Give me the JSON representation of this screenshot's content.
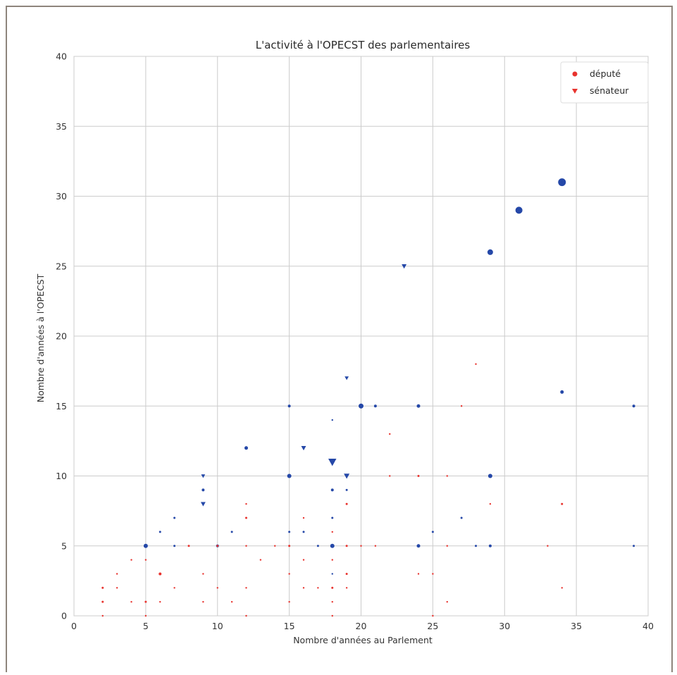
{
  "chart_data": {
    "type": "scatter",
    "title": "L'activité à l'OPECST des parlementaires",
    "xlabel": "Nombre d'années au Parlement",
    "ylabel": "Nombre d'années à l'OPECST",
    "xlim": [
      0,
      40
    ],
    "ylim": [
      0,
      40
    ],
    "xticks": [
      "0",
      "5",
      "10",
      "15",
      "20",
      "25",
      "30",
      "35",
      "40"
    ],
    "yticks": [
      "0",
      "5",
      "10",
      "15",
      "20",
      "25",
      "30",
      "35",
      "40"
    ],
    "grid": true,
    "legend_position": "top-right",
    "legend": [
      {
        "label": "député",
        "marker": "circle",
        "color": "#e8332e"
      },
      {
        "label": "sénateur",
        "marker": "triangle-down",
        "color": "#e8332e"
      }
    ],
    "colors": {
      "red": "#e8332e",
      "blue": "#2548a8",
      "grid": "#cccccc"
    },
    "series": [
      {
        "marker": "circle",
        "color": "#2548a8",
        "points": [
          [
            5,
            5,
            3
          ],
          [
            6,
            6,
            1.5
          ],
          [
            7,
            7,
            1.5
          ],
          [
            7,
            5,
            1.5
          ],
          [
            9,
            9,
            2
          ],
          [
            10,
            5,
            2
          ],
          [
            11,
            6,
            1.5
          ],
          [
            12,
            12,
            2.5
          ],
          [
            15,
            15,
            2
          ],
          [
            15,
            10,
            3
          ],
          [
            15,
            6,
            1.5
          ],
          [
            16,
            6,
            1.5
          ],
          [
            17,
            5,
            1.5
          ],
          [
            18,
            14,
            1.2
          ],
          [
            18,
            9,
            2
          ],
          [
            18,
            7,
            1.5
          ],
          [
            18,
            5,
            3
          ],
          [
            18,
            3,
            1.2
          ],
          [
            19,
            9,
            1.5
          ],
          [
            20,
            15,
            3.5
          ],
          [
            21,
            15,
            2
          ],
          [
            24,
            15,
            2.5
          ],
          [
            24,
            5,
            2.5
          ],
          [
            25,
            6,
            1.5
          ],
          [
            27,
            7,
            1.5
          ],
          [
            28,
            5,
            1.5
          ],
          [
            29,
            26,
            4
          ],
          [
            29,
            10,
            3
          ],
          [
            29,
            5,
            2
          ],
          [
            31,
            29,
            5
          ],
          [
            34,
            31,
            5.5
          ],
          [
            34,
            16,
            2.5
          ],
          [
            39,
            15,
            2
          ],
          [
            39,
            5,
            1.5
          ]
        ]
      },
      {
        "marker": "triangle-down",
        "color": "#2548a8",
        "points": [
          [
            9,
            10,
            2.5
          ],
          [
            9,
            8,
            3
          ],
          [
            16,
            12,
            3
          ],
          [
            18,
            11,
            5
          ],
          [
            19,
            17,
            2.5
          ],
          [
            19,
            10,
            3.5
          ],
          [
            23,
            25,
            3
          ]
        ]
      },
      {
        "marker": "circle",
        "color": "#e8332e",
        "points": [
          [
            2,
            2,
            1.5
          ],
          [
            2,
            1,
            1.5
          ],
          [
            2,
            0,
            1.2
          ],
          [
            3,
            3,
            1.2
          ],
          [
            3,
            2,
            1.2
          ],
          [
            4,
            4,
            1.2
          ],
          [
            4,
            1,
            1.2
          ],
          [
            5,
            4,
            1.2
          ],
          [
            5,
            1,
            1.5
          ],
          [
            5,
            0,
            1.2
          ],
          [
            6,
            3,
            2
          ],
          [
            6,
            1,
            1.2
          ],
          [
            7,
            2,
            1.2
          ],
          [
            8,
            5,
            1.5
          ],
          [
            9,
            3,
            1.2
          ],
          [
            9,
            1,
            1.2
          ],
          [
            10,
            5,
            1.5
          ],
          [
            10,
            2,
            1.2
          ],
          [
            11,
            1,
            1.2
          ],
          [
            12,
            8,
            1.2
          ],
          [
            12,
            7,
            1.5
          ],
          [
            12,
            5,
            1.2
          ],
          [
            12,
            2,
            1.2
          ],
          [
            12,
            0,
            1.2
          ],
          [
            13,
            4,
            1.2
          ],
          [
            14,
            5,
            1.2
          ],
          [
            15,
            5,
            1.5
          ],
          [
            15,
            3,
            1.2
          ],
          [
            15,
            1,
            1.2
          ],
          [
            16,
            7,
            1.2
          ],
          [
            16,
            4,
            1.2
          ],
          [
            16,
            2,
            1.2
          ],
          [
            17,
            2,
            1.2
          ],
          [
            18,
            6,
            1.2
          ],
          [
            18,
            4,
            1.2
          ],
          [
            18,
            2,
            1.5
          ],
          [
            18,
            1,
            1.2
          ],
          [
            18,
            0,
            1.2
          ],
          [
            19,
            8,
            1.5
          ],
          [
            19,
            5,
            1.5
          ],
          [
            19,
            3,
            1.5
          ],
          [
            19,
            2,
            1.2
          ],
          [
            20,
            5,
            1.2
          ],
          [
            21,
            5,
            1.2
          ],
          [
            22,
            13,
            1.2
          ],
          [
            22,
            10,
            1.2
          ],
          [
            24,
            10,
            1.5
          ],
          [
            24,
            3,
            1.2
          ],
          [
            25,
            3,
            1.2
          ],
          [
            25,
            0,
            1.2
          ],
          [
            26,
            10,
            1.2
          ],
          [
            26,
            5,
            1.2
          ],
          [
            26,
            1,
            1.2
          ],
          [
            27,
            15,
            1.2
          ],
          [
            28,
            18,
            1.2
          ],
          [
            29,
            8,
            1.2
          ],
          [
            33,
            5,
            1.2
          ],
          [
            34,
            8,
            1.5
          ],
          [
            34,
            2,
            1.2
          ]
        ]
      }
    ]
  }
}
